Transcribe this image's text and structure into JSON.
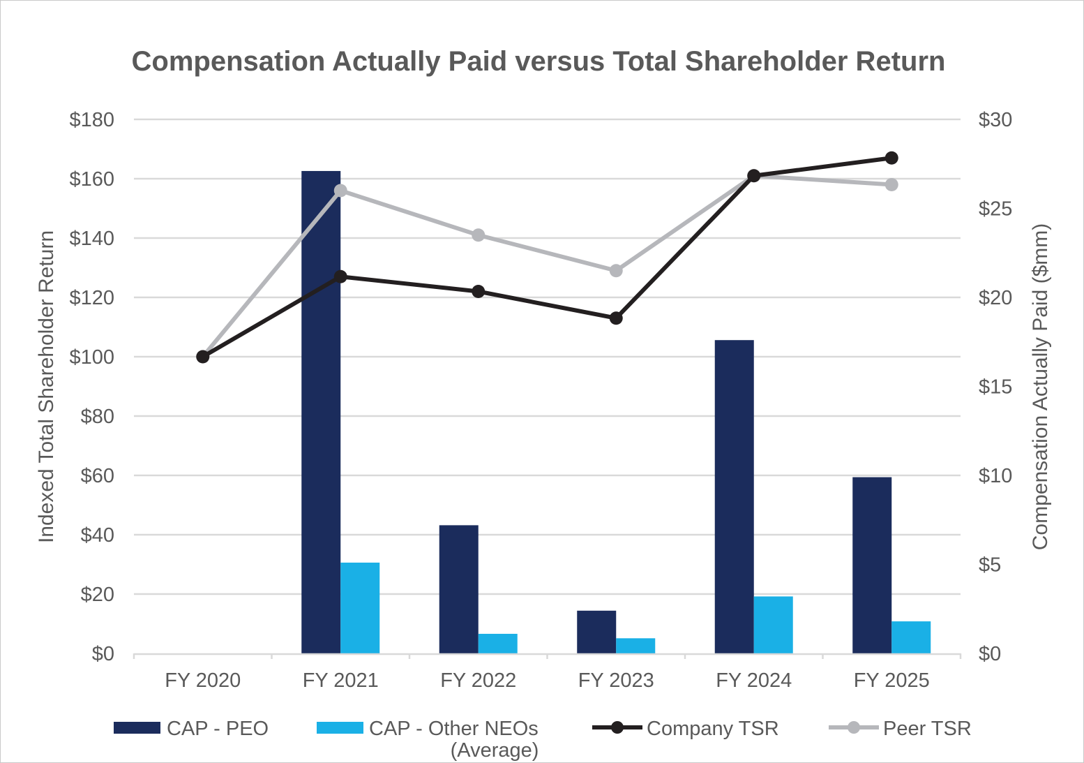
{
  "chart_data": {
    "type": "bar+line",
    "title": "Compensation Actually Paid versus Total Shareholder Return",
    "categories": [
      "FY 2020",
      "FY 2021",
      "FY 2022",
      "FY 2023",
      "FY 2024",
      "FY 2025"
    ],
    "y_left": {
      "label": "Indexed Total Shareholder Return",
      "range": [
        0,
        180
      ],
      "ticks": [
        "$0",
        "$20",
        "$40",
        "$60",
        "$80",
        "$100",
        "$120",
        "$140",
        "$160",
        "$180"
      ],
      "tick_values": [
        0,
        20,
        40,
        60,
        80,
        100,
        120,
        140,
        160,
        180
      ]
    },
    "y_right": {
      "label": "Compensation Actually Paid ($mm)",
      "range": [
        0,
        30
      ],
      "ticks": [
        "$0",
        "$5",
        "$10",
        "$15",
        "$20",
        "$25",
        "$30"
      ],
      "tick_values": [
        0,
        5,
        10,
        15,
        20,
        25,
        30
      ]
    },
    "gridlines": true,
    "legend_position": "bottom",
    "bar_series": [
      {
        "name": "CAP - PEO",
        "axis": "right",
        "color": "#1b2c5c",
        "values": [
          0,
          27.1,
          7.2,
          2.4,
          17.6,
          9.9
        ]
      },
      {
        "name": "CAP - Other NEOs (Average)",
        "legend_lines": [
          "CAP - Other NEOs",
          "(Average)"
        ],
        "axis": "right",
        "color": "#1ab0e6",
        "values": [
          0,
          5.1,
          1.1,
          0.85,
          3.2,
          1.8
        ]
      }
    ],
    "line_series": [
      {
        "name": "Company TSR",
        "axis": "left",
        "color": "#231f20",
        "values": [
          100,
          127,
          122,
          113,
          161,
          167
        ]
      },
      {
        "name": "Peer TSR",
        "axis": "left",
        "color": "#b6b7bb",
        "values": [
          100,
          156,
          141,
          129,
          161,
          158
        ]
      }
    ]
  }
}
